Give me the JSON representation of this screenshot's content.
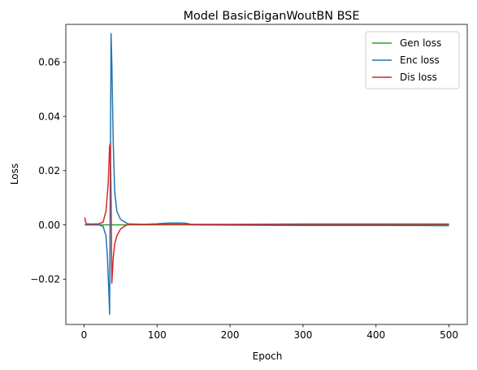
{
  "chart_data": {
    "type": "line",
    "title": "Model BasicBiganWoutBN BSE",
    "xlabel": "Epoch",
    "ylabel": "Loss",
    "xlim": [
      -25,
      525
    ],
    "ylim": [
      -0.0367,
      0.0739
    ],
    "xticks": [
      0,
      100,
      200,
      300,
      400,
      500
    ],
    "yticks": [
      -0.02,
      0.0,
      0.02,
      0.04,
      0.06
    ],
    "ytick_labels": [
      "−0.02",
      "0.00",
      "0.02",
      "0.04",
      "0.06"
    ],
    "grid": false,
    "legend_position": "top-right",
    "series": [
      {
        "name": "Gen loss",
        "color": "#2ca02c",
        "x": [
          1,
          500
        ],
        "y": [
          0.0,
          0.0
        ]
      },
      {
        "name": "Enc loss",
        "color": "#1f77b4",
        "x": [
          1,
          20,
          26,
          30,
          32,
          34,
          35,
          36,
          37,
          38,
          40,
          42,
          45,
          50,
          55,
          60,
          80,
          100,
          110,
          120,
          130,
          140,
          150,
          200,
          300,
          400,
          500
        ],
        "y": [
          0.0,
          0.0,
          -0.0005,
          -0.004,
          -0.012,
          -0.025,
          -0.033,
          0.02,
          0.0705,
          0.06,
          0.03,
          0.012,
          0.005,
          0.002,
          0.0012,
          0.0004,
          0.0002,
          0.0004,
          0.0006,
          0.0007,
          0.0007,
          0.0006,
          0.0,
          -0.0001,
          -0.0002,
          -0.0002,
          -0.0003
        ]
      },
      {
        "name": "Dis loss",
        "color": "#d62728",
        "x": [
          1,
          2,
          3,
          10,
          20,
          26,
          30,
          33,
          35,
          36,
          37,
          38,
          40,
          42,
          45,
          48,
          50,
          55,
          60,
          100,
          200,
          300,
          400,
          500
        ],
        "y": [
          0.0027,
          0.0012,
          0.0004,
          0.0003,
          0.0004,
          0.001,
          0.005,
          0.015,
          0.029,
          0.03,
          0.01,
          -0.0215,
          -0.012,
          -0.007,
          -0.004,
          -0.0025,
          -0.0015,
          -0.0006,
          0.0002,
          0.0002,
          0.0002,
          0.0003,
          0.0003,
          0.0003
        ]
      }
    ]
  }
}
